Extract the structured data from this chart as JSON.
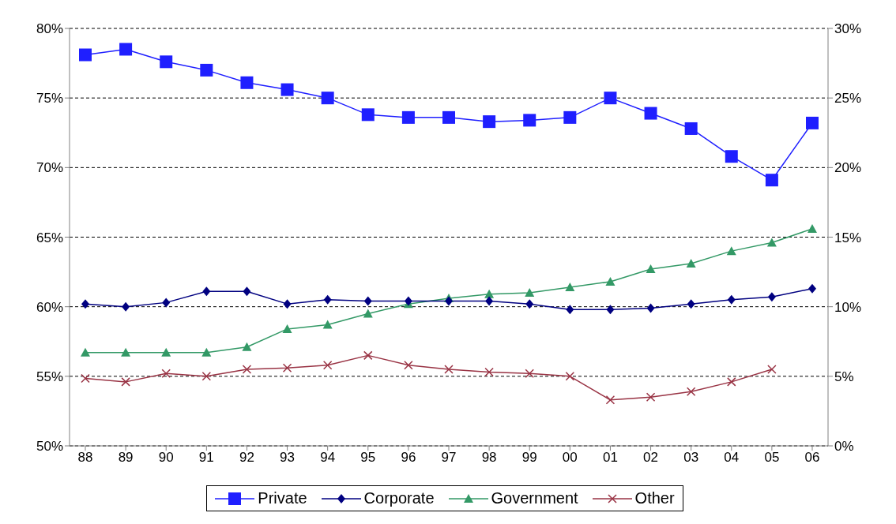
{
  "chart_data": {
    "type": "line",
    "categories": [
      "88",
      "89",
      "90",
      "91",
      "92",
      "93",
      "94",
      "95",
      "96",
      "97",
      "98",
      "99",
      "00",
      "01",
      "02",
      "03",
      "04",
      "05",
      "06"
    ],
    "series": [
      {
        "name": "Private",
        "color": "#1f1fff",
        "marker": "square",
        "values": [
          78.1,
          78.5,
          77.6,
          77.0,
          76.1,
          75.6,
          75.0,
          73.8,
          73.6,
          73.6,
          73.3,
          73.4,
          73.6,
          75.0,
          73.9,
          72.8,
          70.8,
          69.1,
          73.2
        ]
      },
      {
        "name": "Corporate",
        "color": "#000080",
        "marker": "diamond",
        "axis": "y2",
        "values": [
          10.2,
          10.0,
          10.3,
          11.1,
          11.1,
          10.2,
          10.5,
          10.4,
          10.4,
          10.4,
          10.4,
          10.2,
          9.8,
          9.8,
          9.9,
          10.2,
          10.5,
          10.7,
          11.3
        ]
      },
      {
        "name": "Government",
        "color": "#339966",
        "marker": "triangle",
        "axis": "y2",
        "values": [
          6.7,
          6.7,
          6.7,
          6.7,
          7.1,
          8.4,
          8.7,
          9.5,
          10.2,
          10.6,
          10.9,
          11.0,
          11.4,
          11.8,
          12.7,
          13.1,
          14.0,
          14.6,
          15.6
        ]
      },
      {
        "name": "Other",
        "color": "#993344",
        "marker": "cross",
        "axis": "y2",
        "values": [
          4.85,
          4.6,
          5.2,
          5.0,
          5.5,
          5.6,
          5.8,
          6.5,
          5.8,
          5.5,
          5.3,
          5.2,
          5.0,
          3.3,
          3.5,
          3.9,
          4.6,
          5.5,
          null
        ]
      }
    ],
    "ylim": [
      50,
      80
    ],
    "yticks": [
      {
        "value": 50,
        "label": "50%"
      },
      {
        "value": 55,
        "label": "55%"
      },
      {
        "value": 60,
        "label": "60%"
      },
      {
        "value": 65,
        "label": "65%"
      },
      {
        "value": 70,
        "label": "70%"
      },
      {
        "value": 75,
        "label": "75%"
      },
      {
        "value": 80,
        "label": "80%"
      }
    ],
    "y2lim": [
      0,
      30
    ],
    "y2ticks": [
      {
        "value": 0,
        "label": "0%"
      },
      {
        "value": 5,
        "label": "5%"
      },
      {
        "value": 10,
        "label": "10%"
      },
      {
        "value": 15,
        "label": "15%"
      },
      {
        "value": 20,
        "label": "20%"
      },
      {
        "value": 25,
        "label": "25%"
      },
      {
        "value": 30,
        "label": "30%"
      }
    ],
    "grid": "y",
    "legend": "bottom"
  }
}
